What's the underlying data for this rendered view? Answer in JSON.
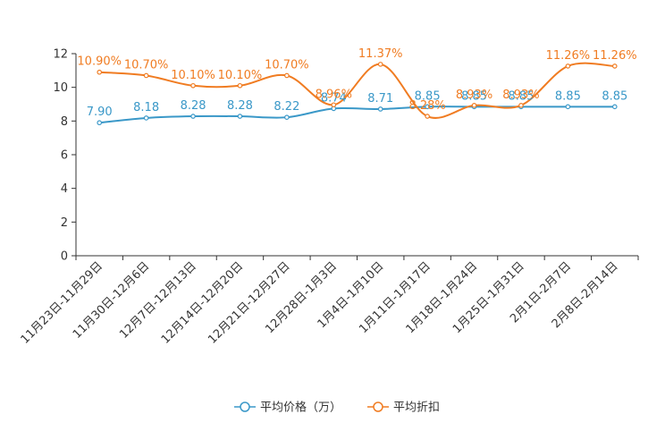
{
  "chart_data": {
    "type": "line",
    "title": "",
    "xlabel": "",
    "ylabel": "",
    "ylim": [
      0,
      12
    ],
    "yticks": [
      0,
      2,
      4,
      6,
      8,
      10,
      12
    ],
    "grid": false,
    "legend_position": "bottom",
    "categories": [
      "11月23日-11月29日",
      "11月30日-12月6日",
      "12月7日-12月13日",
      "12月14日-12月20日",
      "12月21日-12月27日",
      "12月28日-1月3日",
      "1月4日-1月10日",
      "1月11日-1月17日",
      "1月18日-1月24日",
      "1月25日-1月31日",
      "2月1日-2月7日",
      "2月8日-2月14日"
    ],
    "series": [
      {
        "name": "平均价格（万）",
        "color": "#3a98c8",
        "values": [
          7.9,
          8.18,
          8.28,
          8.28,
          8.22,
          8.74,
          8.71,
          8.85,
          8.85,
          8.85,
          8.85,
          8.85
        ],
        "labels": [
          "7.90",
          "8.18",
          "8.28",
          "8.28",
          "8.22",
          "8.74",
          "8.71",
          "8.85",
          "8.85",
          "8.85",
          "8.85",
          "8.85"
        ]
      },
      {
        "name": "平均折扣",
        "color": "#f07c22",
        "values": [
          10.9,
          10.7,
          10.1,
          10.1,
          10.7,
          8.96,
          11.37,
          8.28,
          8.93,
          8.93,
          11.26,
          11.26
        ],
        "labels": [
          "10.90%",
          "10.70%",
          "10.10%",
          "10.10%",
          "10.70%",
          "8.96%",
          "11.37%",
          "8.28%",
          "8.93%",
          "8.93%",
          "11.26%",
          "11.26%"
        ]
      }
    ]
  }
}
